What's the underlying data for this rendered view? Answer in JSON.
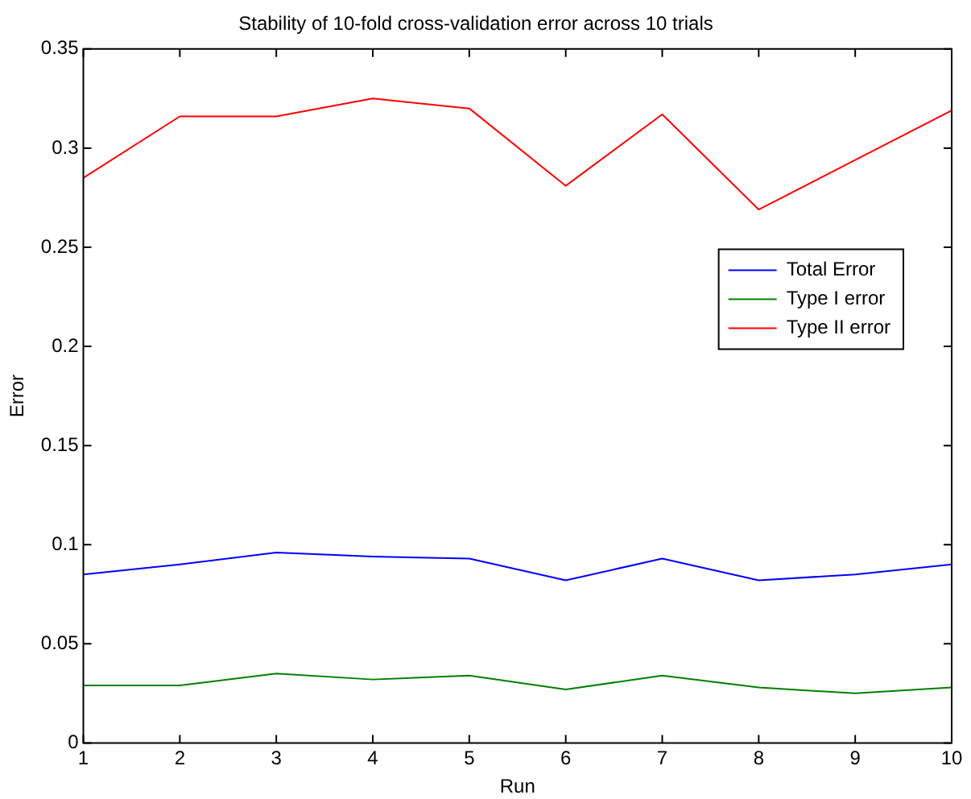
{
  "chart_data": {
    "type": "line",
    "title": "Stability of 10-fold cross-validation error across 10 trials",
    "xlabel": "Run",
    "ylabel": "Error",
    "x": [
      1,
      2,
      3,
      4,
      5,
      6,
      7,
      8,
      9,
      10
    ],
    "series": [
      {
        "name": "Total Error",
        "color": "#0000ff",
        "values": [
          0.085,
          0.09,
          0.096,
          0.094,
          0.093,
          0.082,
          0.093,
          0.082,
          0.085,
          0.09
        ]
      },
      {
        "name": "Type I error",
        "color": "#008000",
        "values": [
          0.029,
          0.029,
          0.035,
          0.032,
          0.034,
          0.027,
          0.034,
          0.028,
          0.025,
          0.028
        ]
      },
      {
        "name": "Type II error",
        "color": "#ff0000",
        "values": [
          0.285,
          0.316,
          0.316,
          0.325,
          0.32,
          0.281,
          0.317,
          0.269,
          0.294,
          0.319
        ]
      }
    ],
    "xlim": [
      1,
      10
    ],
    "xticks": [
      1,
      2,
      3,
      4,
      5,
      6,
      7,
      8,
      9,
      10
    ],
    "ylim": [
      0,
      0.35
    ],
    "yticks": [
      0,
      0.05,
      0.1,
      0.15,
      0.2,
      0.25,
      0.3,
      0.35
    ],
    "grid": false,
    "legend": "right",
    "marker": "none",
    "line_style": "solid"
  }
}
